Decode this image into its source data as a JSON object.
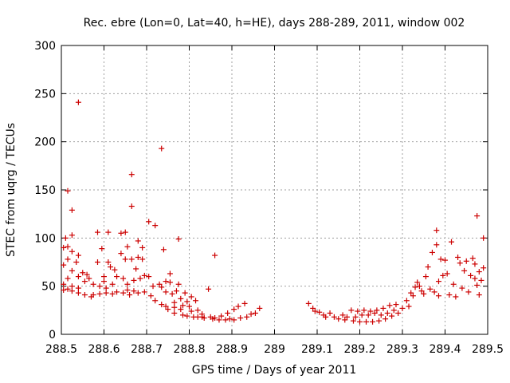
{
  "chart_data": {
    "type": "scatter",
    "title": "Rec. ebre (Lon=0, Lat=40, h=HE), days 288-289, 2011, window 002",
    "xlabel": "GPS time / Days of year 2011",
    "ylabel": "STEC from uqrg / TECUs",
    "xlim": [
      288.5,
      289.5
    ],
    "ylim": [
      0,
      300
    ],
    "x_ticks": [
      288.5,
      288.6,
      288.7,
      288.8,
      288.9,
      289,
      289.1,
      289.2,
      289.3,
      289.4,
      289.5
    ],
    "x_tick_labels": [
      "288.5",
      "288.6",
      "288.7",
      "288.8",
      "288.9",
      "289",
      "289.1",
      "289.2",
      "289.3",
      "289.4",
      "289.5"
    ],
    "y_ticks": [
      0,
      50,
      100,
      150,
      200,
      250,
      300
    ],
    "y_tick_labels": [
      "0",
      "50",
      "100",
      "150",
      "200",
      "250",
      "300"
    ],
    "grid": true,
    "marker": "+",
    "color": "#cc0000",
    "series": [
      {
        "points": [
          [
            288.505,
            90
          ],
          [
            288.505,
            72
          ],
          [
            288.505,
            52
          ],
          [
            288.505,
            46
          ],
          [
            288.51,
            100
          ],
          [
            288.515,
            149
          ],
          [
            288.515,
            91
          ],
          [
            288.515,
            78
          ],
          [
            288.515,
            58
          ],
          [
            288.515,
            47
          ],
          [
            288.525,
            129
          ],
          [
            288.525,
            103
          ],
          [
            288.525,
            86
          ],
          [
            288.525,
            66
          ],
          [
            288.525,
            50
          ],
          [
            288.525,
            45
          ],
          [
            288.535,
            75
          ],
          [
            288.54,
            241
          ],
          [
            288.54,
            82
          ],
          [
            288.54,
            60
          ],
          [
            288.54,
            48
          ],
          [
            288.54,
            43
          ],
          [
            288.55,
            64
          ],
          [
            288.555,
            55
          ],
          [
            288.555,
            41
          ],
          [
            288.56,
            62
          ],
          [
            288.565,
            58
          ],
          [
            288.57,
            39
          ],
          [
            288.575,
            52
          ],
          [
            288.575,
            41
          ],
          [
            288.585,
            106
          ],
          [
            288.585,
            75
          ],
          [
            288.59,
            50
          ],
          [
            288.59,
            42
          ],
          [
            288.595,
            89
          ],
          [
            288.6,
            60
          ],
          [
            288.6,
            55
          ],
          [
            288.605,
            48
          ],
          [
            288.605,
            43
          ],
          [
            288.61,
            106
          ],
          [
            288.61,
            75
          ],
          [
            288.615,
            70
          ],
          [
            288.62,
            52
          ],
          [
            288.62,
            42
          ],
          [
            288.625,
            67
          ],
          [
            288.63,
            60
          ],
          [
            288.63,
            44
          ],
          [
            288.64,
            105
          ],
          [
            288.64,
            84
          ],
          [
            288.645,
            58
          ],
          [
            288.645,
            43
          ],
          [
            288.65,
            106
          ],
          [
            288.65,
            78
          ],
          [
            288.655,
            91
          ],
          [
            288.655,
            52
          ],
          [
            288.655,
            46
          ],
          [
            288.66,
            41
          ],
          [
            288.665,
            166
          ],
          [
            288.665,
            133
          ],
          [
            288.665,
            78
          ],
          [
            288.67,
            56
          ],
          [
            288.67,
            45
          ],
          [
            288.675,
            68
          ],
          [
            288.68,
            97
          ],
          [
            288.68,
            80
          ],
          [
            288.68,
            43
          ],
          [
            288.685,
            58
          ],
          [
            288.69,
            90
          ],
          [
            288.69,
            78
          ],
          [
            288.695,
            61
          ],
          [
            288.695,
            44
          ],
          [
            288.705,
            117
          ],
          [
            288.705,
            60
          ],
          [
            288.71,
            40
          ],
          [
            288.715,
            50
          ],
          [
            288.72,
            113
          ],
          [
            288.72,
            35
          ],
          [
            288.73,
            52
          ],
          [
            288.735,
            193
          ],
          [
            288.735,
            49
          ],
          [
            288.735,
            31
          ],
          [
            288.74,
            88
          ],
          [
            288.745,
            55
          ],
          [
            288.745,
            44
          ],
          [
            288.745,
            29
          ],
          [
            288.75,
            26
          ],
          [
            288.755,
            63
          ],
          [
            288.755,
            54
          ],
          [
            288.76,
            42
          ],
          [
            288.765,
            33
          ],
          [
            288.765,
            28
          ],
          [
            288.765,
            22
          ],
          [
            288.77,
            45
          ],
          [
            288.775,
            99
          ],
          [
            288.775,
            52
          ],
          [
            288.78,
            37
          ],
          [
            288.78,
            26
          ],
          [
            288.785,
            30
          ],
          [
            288.785,
            20
          ],
          [
            288.79,
            43
          ],
          [
            288.795,
            34
          ],
          [
            288.795,
            19
          ],
          [
            288.8,
            29
          ],
          [
            288.805,
            39
          ],
          [
            288.805,
            24
          ],
          [
            288.81,
            18
          ],
          [
            288.815,
            35
          ],
          [
            288.82,
            25
          ],
          [
            288.82,
            18
          ],
          [
            288.83,
            21
          ],
          [
            288.83,
            18
          ],
          [
            288.835,
            17
          ],
          [
            288.845,
            47
          ],
          [
            288.85,
            18
          ],
          [
            288.855,
            16
          ],
          [
            288.86,
            82
          ],
          [
            288.86,
            17
          ],
          [
            288.87,
            15
          ],
          [
            288.875,
            19
          ],
          [
            288.885,
            15
          ],
          [
            288.89,
            22
          ],
          [
            288.895,
            16
          ],
          [
            288.905,
            26
          ],
          [
            288.905,
            15
          ],
          [
            288.915,
            29
          ],
          [
            288.92,
            17
          ],
          [
            288.93,
            32
          ],
          [
            288.935,
            18
          ],
          [
            288.945,
            21
          ],
          [
            288.955,
            22
          ],
          [
            288.965,
            27
          ],
          [
            289.08,
            32
          ],
          [
            289.09,
            27
          ],
          [
            289.095,
            24
          ],
          [
            289.105,
            23
          ],
          [
            289.115,
            20
          ],
          [
            289.12,
            18
          ],
          [
            289.13,
            22
          ],
          [
            289.14,
            18
          ],
          [
            289.15,
            16
          ],
          [
            289.16,
            20
          ],
          [
            289.165,
            15
          ],
          [
            289.17,
            18
          ],
          [
            289.18,
            25
          ],
          [
            289.185,
            14
          ],
          [
            289.19,
            18
          ],
          [
            289.195,
            24
          ],
          [
            289.2,
            13
          ],
          [
            289.205,
            20
          ],
          [
            289.21,
            25
          ],
          [
            289.215,
            13
          ],
          [
            289.22,
            20
          ],
          [
            289.225,
            24
          ],
          [
            289.23,
            13
          ],
          [
            289.235,
            22
          ],
          [
            289.24,
            25
          ],
          [
            289.245,
            14
          ],
          [
            289.25,
            20
          ],
          [
            289.255,
            27
          ],
          [
            289.26,
            16
          ],
          [
            289.265,
            22
          ],
          [
            289.27,
            30
          ],
          [
            289.275,
            19
          ],
          [
            289.28,
            25
          ],
          [
            289.285,
            31
          ],
          [
            289.29,
            22
          ],
          [
            289.3,
            27
          ],
          [
            289.31,
            35
          ],
          [
            289.315,
            29
          ],
          [
            289.32,
            43
          ],
          [
            289.325,
            40
          ],
          [
            289.33,
            49
          ],
          [
            289.335,
            54
          ],
          [
            289.34,
            50
          ],
          [
            289.345,
            45
          ],
          [
            289.35,
            42
          ],
          [
            289.355,
            60
          ],
          [
            289.36,
            70
          ],
          [
            289.365,
            47
          ],
          [
            289.37,
            85
          ],
          [
            289.375,
            44
          ],
          [
            289.38,
            108
          ],
          [
            289.38,
            93
          ],
          [
            289.385,
            55
          ],
          [
            289.385,
            40
          ],
          [
            289.39,
            78
          ],
          [
            289.395,
            61
          ],
          [
            289.4,
            77
          ],
          [
            289.405,
            63
          ],
          [
            289.41,
            41
          ],
          [
            289.415,
            96
          ],
          [
            289.42,
            52
          ],
          [
            289.425,
            39
          ],
          [
            289.43,
            80
          ],
          [
            289.435,
            74
          ],
          [
            289.44,
            48
          ],
          [
            289.445,
            66
          ],
          [
            289.45,
            76
          ],
          [
            289.455,
            44
          ],
          [
            289.46,
            61
          ],
          [
            289.465,
            79
          ],
          [
            289.47,
            73
          ],
          [
            289.47,
            58
          ],
          [
            289.475,
            123
          ],
          [
            289.475,
            51
          ],
          [
            289.48,
            65
          ],
          [
            289.48,
            41
          ],
          [
            289.485,
            56
          ],
          [
            289.49,
            100
          ],
          [
            289.49,
            69
          ]
        ]
      }
    ]
  }
}
